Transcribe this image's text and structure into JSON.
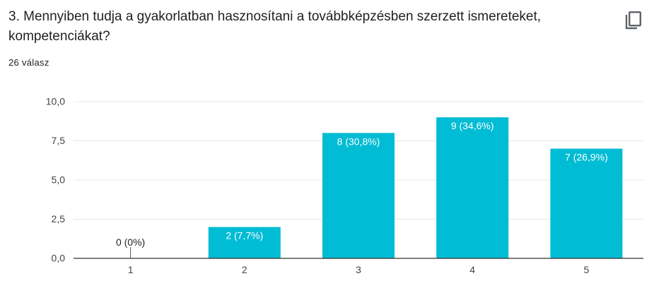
{
  "question": {
    "title": "3. Mennyiben tudja a gyakorlatban hasznosítani a továbbképzésben szerzett ismereteket, kompetenciákat?",
    "response_count": "26 válasz",
    "copy_icon": "copy-icon"
  },
  "colors": {
    "bar": "#00bcd4",
    "grid": "#e8e8e8",
    "axis": "#333333",
    "label_inside": "#ffffff",
    "label_outside": "#222222",
    "tick_text": "#444444"
  },
  "chart_data": {
    "type": "bar",
    "categories": [
      "1",
      "2",
      "3",
      "4",
      "5"
    ],
    "values": [
      0,
      2,
      8,
      9,
      7
    ],
    "data_labels": [
      "0 (0%)",
      "2 (7,7%)",
      "8 (30,8%)",
      "9 (34,6%)",
      "7 (26,9%)"
    ],
    "yticks": [
      "0,0",
      "2,5",
      "5,0",
      "7,5",
      "10,0"
    ],
    "ytick_values": [
      0,
      2.5,
      5,
      7.5,
      10
    ],
    "ylim": [
      0,
      10
    ],
    "title": "",
    "xlabel": "",
    "ylabel": "",
    "grid": true,
    "legend": "none"
  }
}
